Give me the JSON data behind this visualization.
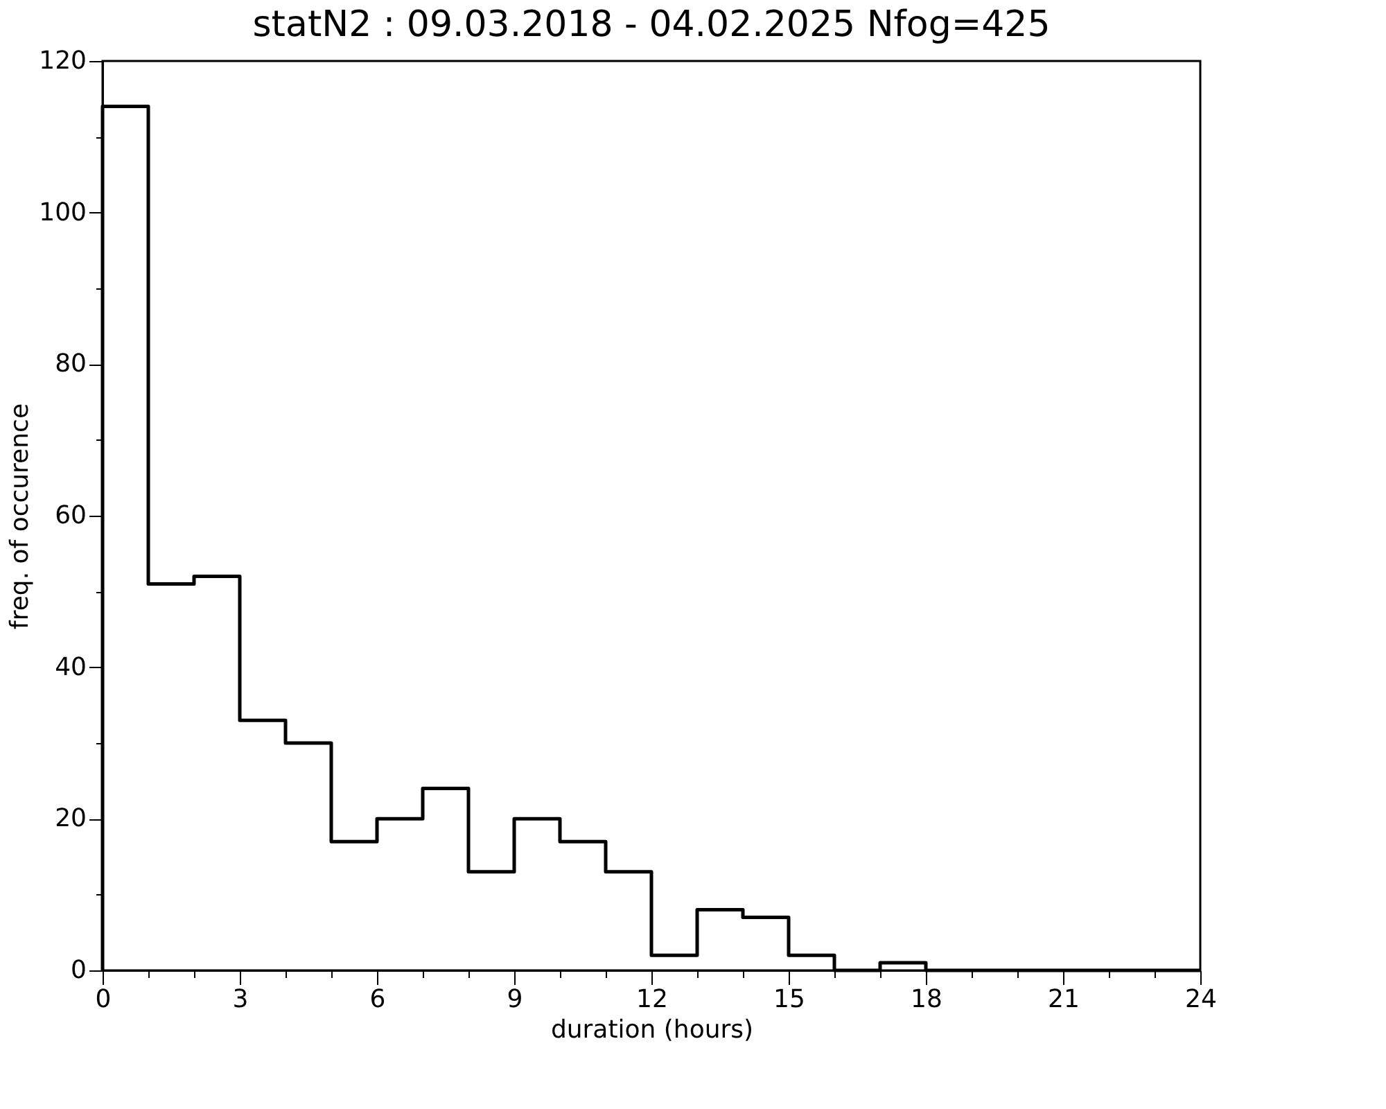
{
  "chart_data": {
    "type": "histogram",
    "title": "statN2 : 09.03.2018 - 04.02.2025 Nfog=425",
    "xlabel": "duration (hours)",
    "ylabel": "freq. of occurence",
    "bins": [
      0,
      1,
      2,
      3,
      4,
      5,
      6,
      7,
      8,
      9,
      10,
      11,
      12,
      13,
      14,
      15,
      16,
      17,
      18,
      19,
      20,
      21,
      22,
      23,
      24
    ],
    "values": [
      114,
      51,
      52,
      33,
      30,
      17,
      20,
      24,
      13,
      20,
      17,
      13,
      2,
      8,
      7,
      2,
      0,
      1,
      0,
      0,
      0,
      0,
      0,
      0
    ],
    "color": "#000000",
    "xlim": [
      0,
      24
    ],
    "ylim": [
      0,
      120
    ],
    "xticks": [
      0,
      {
        "value": 1,
        "label": null
      },
      {
        "value": 2,
        "label": null
      },
      3,
      {
        "value": 4,
        "label": null
      },
      {
        "value": 5,
        "label": null
      },
      6,
      {
        "value": 7,
        "label": null
      },
      {
        "value": 8,
        "label": null
      },
      9,
      {
        "value": 10,
        "label": null
      },
      {
        "value": 11,
        "label": null
      },
      12,
      {
        "value": 13,
        "label": null
      },
      {
        "value": 14,
        "label": null
      },
      15,
      {
        "value": 16,
        "label": null
      },
      {
        "value": 17,
        "label": null
      },
      18,
      {
        "value": 19,
        "label": null
      },
      {
        "value": 20,
        "label": null
      },
      21,
      {
        "value": 22,
        "label": null
      },
      {
        "value": 23,
        "label": null
      },
      24
    ],
    "yticks": [
      0,
      {
        "value": 10,
        "label": null
      },
      20,
      {
        "value": 30,
        "label": null
      },
      40,
      {
        "value": 50,
        "label": null
      },
      60,
      {
        "value": 70,
        "label": null
      },
      80,
      {
        "value": 90,
        "label": null
      },
      100,
      {
        "value": 110,
        "label": null
      },
      120
    ],
    "grid": false
  }
}
